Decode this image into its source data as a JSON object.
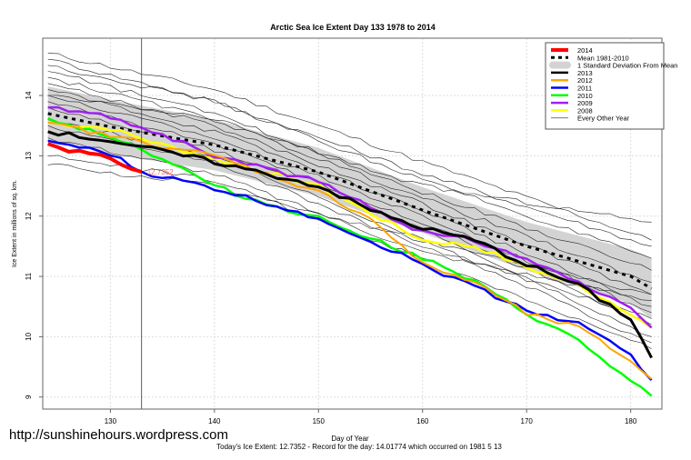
{
  "watermark": "http://sunshinehours.wordpress.com",
  "footer": "Today's Ice Extent: 12.7352  - Record for the day: 14.01774 which occurred on 1981 5 13",
  "chart_data": {
    "type": "line",
    "title": "Arctic Sea Ice Extent Day 133 1978 to 2014",
    "xlabel": "Day of Year",
    "ylabel": "Ice Extent in millions of sq. km.",
    "xlim": [
      123.5,
      183
    ],
    "ylim": [
      8.8,
      14.95
    ],
    "xticks": [
      130,
      140,
      150,
      160,
      170,
      180
    ],
    "yticks": [
      9,
      10,
      11,
      12,
      13,
      14
    ],
    "grid": true,
    "legend_position": "top-right",
    "current_day": 133,
    "current_value_label": "12.7352",
    "mean": {
      "name": "Mean 1981-2010",
      "x": [
        124,
        130,
        140,
        150,
        160,
        170,
        180,
        182
      ],
      "y": [
        13.7,
        13.48,
        13.18,
        12.73,
        12.1,
        11.5,
        11.0,
        10.8
      ]
    },
    "sd_band": {
      "name": "1 Standard Deviation From Mean",
      "half_width": [
        0.45,
        0.45,
        0.42,
        0.4,
        0.38,
        0.4,
        0.45,
        0.5
      ]
    },
    "series": [
      {
        "name": "2014",
        "color": "#ff0000",
        "width": 4,
        "x": [
          124,
          126,
          128,
          130,
          132,
          133
        ],
        "y": [
          13.2,
          13.1,
          13.05,
          12.97,
          12.82,
          12.7352
        ]
      },
      {
        "name": "2013",
        "color": "#000000",
        "width": 3,
        "x": [
          124,
          130,
          140,
          150,
          155,
          160,
          165,
          170,
          175,
          180,
          182
        ],
        "y": [
          13.4,
          13.25,
          12.9,
          12.5,
          12.1,
          11.8,
          11.6,
          11.2,
          10.85,
          10.3,
          9.65
        ]
      },
      {
        "name": "2012",
        "color": "#ffa500",
        "width": 2,
        "x": [
          124,
          130,
          140,
          150,
          155,
          158,
          160,
          165,
          170,
          175,
          180,
          182
        ],
        "y": [
          13.55,
          13.33,
          13.0,
          12.4,
          11.97,
          11.5,
          11.2,
          10.9,
          10.38,
          10.15,
          9.6,
          9.3
        ]
      },
      {
        "name": "2011",
        "color": "#0000ff",
        "width": 2.5,
        "x": [
          124,
          130,
          133,
          140,
          150,
          160,
          170,
          175,
          180,
          182
        ],
        "y": [
          13.25,
          13.03,
          12.73,
          12.46,
          11.97,
          11.2,
          10.45,
          10.22,
          9.7,
          9.28
        ]
      },
      {
        "name": "2010",
        "color": "#00ff00",
        "width": 2.5,
        "x": [
          124,
          130,
          135,
          140,
          145,
          150,
          155,
          160,
          165,
          170,
          175,
          180,
          182
        ],
        "y": [
          13.62,
          13.33,
          12.95,
          12.5,
          12.2,
          11.97,
          11.64,
          11.3,
          10.9,
          10.38,
          9.93,
          9.25,
          9.02
        ]
      },
      {
        "name": "2009",
        "color": "#a020f0",
        "width": 2.5,
        "x": [
          124,
          130,
          135,
          140,
          150,
          160,
          165,
          170,
          175,
          180,
          182
        ],
        "y": [
          13.8,
          13.65,
          13.35,
          13.0,
          12.57,
          11.73,
          11.6,
          11.3,
          10.9,
          10.45,
          10.15
        ]
      },
      {
        "name": "2008",
        "color": "#ffff00",
        "width": 2.5,
        "x": [
          124,
          130,
          135,
          140,
          150,
          160,
          165,
          170,
          175,
          180,
          182
        ],
        "y": [
          13.55,
          13.45,
          13.18,
          12.95,
          12.5,
          11.6,
          11.5,
          11.15,
          10.85,
          10.4,
          10.15
        ]
      }
    ],
    "other_years": {
      "name": "Every Other Year",
      "color": "#000000",
      "x": [
        124,
        140,
        160,
        182
      ],
      "ys": [
        [
          14.7,
          14.1,
          12.9,
          11.6
        ],
        [
          14.6,
          13.9,
          12.7,
          11.5
        ],
        [
          14.5,
          13.9,
          12.6,
          11.3
        ],
        [
          14.4,
          13.7,
          12.4,
          11.1
        ],
        [
          14.3,
          13.6,
          12.3,
          10.9
        ],
        [
          14.2,
          13.5,
          12.2,
          10.7
        ],
        [
          14.1,
          13.4,
          12.1,
          10.5
        ],
        [
          14.0,
          13.3,
          12.0,
          10.4
        ],
        [
          13.9,
          13.2,
          11.9,
          10.2
        ],
        [
          13.8,
          13.1,
          11.8,
          10.0
        ],
        [
          13.6,
          13.0,
          11.6,
          9.9
        ],
        [
          13.5,
          12.9,
          11.5,
          10.3
        ],
        [
          13.3,
          12.7,
          11.4,
          10.6
        ],
        [
          12.85,
          12.5,
          11.6,
          10.7
        ],
        [
          13.0,
          12.6,
          11.3,
          9.8
        ],
        [
          14.0,
          13.6,
          12.5,
          11.9
        ]
      ]
    }
  }
}
